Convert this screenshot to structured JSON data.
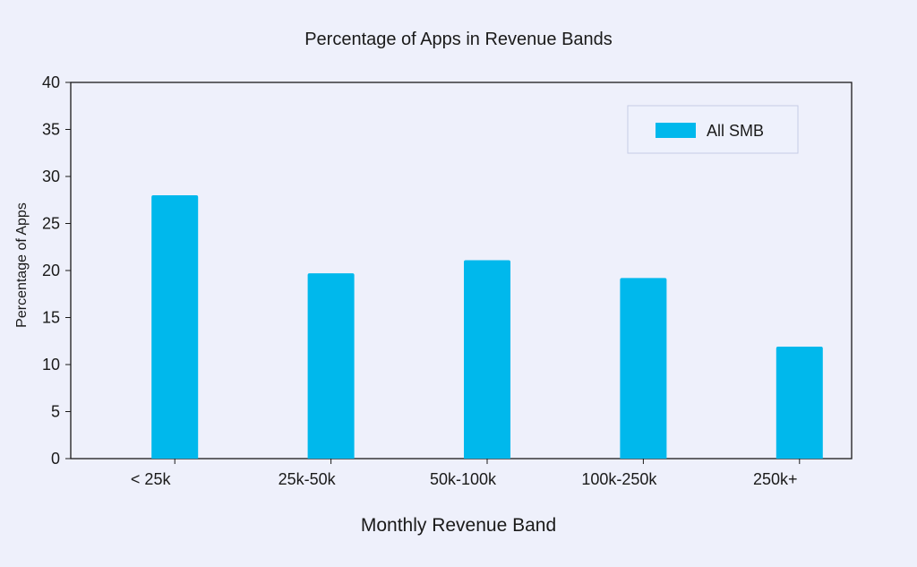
{
  "chart_data": {
    "type": "bar",
    "title": "Percentage of Apps in Revenue Bands",
    "xlabel": "Monthly Revenue Band",
    "ylabel": "Percentage of Apps",
    "categories": [
      "< 25k",
      "25k-50k",
      "50k-100k",
      "100k-250k",
      "250k+"
    ],
    "series": [
      {
        "name": "All SMB",
        "values": [
          28,
          19.7,
          21.1,
          19.2,
          11.9
        ]
      }
    ],
    "ylim": [
      0,
      40
    ],
    "yticks": [
      0,
      5,
      10,
      15,
      20,
      25,
      30,
      35,
      40
    ],
    "grid": false,
    "legend": "top-right",
    "colors": {
      "bar": "#00b8ec",
      "background": "#eef0fb",
      "axis": "#1a1a1a"
    }
  }
}
